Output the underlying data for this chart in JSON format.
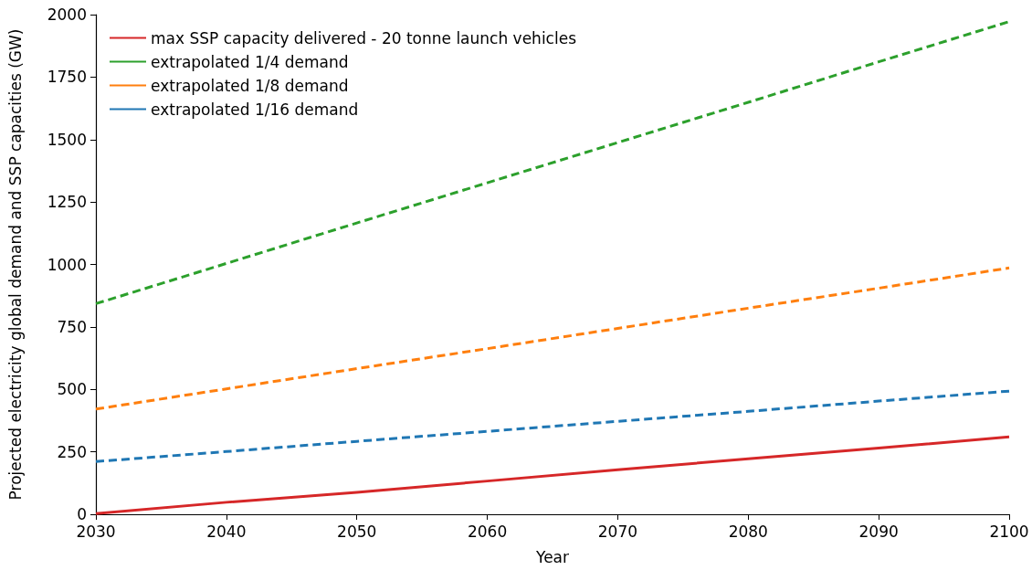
{
  "chart_data": {
    "type": "line",
    "xlabel": "Year",
    "ylabel": "Projected electricity global demand and SSP capacities (GW)",
    "x": [
      2030,
      2040,
      2050,
      2060,
      2070,
      2080,
      2090,
      2100
    ],
    "series": [
      {
        "name": "max SSP capacity delivered - 20 tonne launch vehicles",
        "color": "#d62728",
        "line_style": "solid",
        "values": [
          3,
          48,
          88,
          133,
          178,
          222,
          265,
          310
        ]
      },
      {
        "name": "extrapolated 1/4 demand",
        "color": "#2ca02c",
        "line_style": "dashed",
        "values": [
          843,
          1004,
          1166,
          1327,
          1488,
          1649,
          1811,
          1972
        ]
      },
      {
        "name": "extrapolated 1/8 demand",
        "color": "#ff7f0e",
        "line_style": "dashed",
        "values": [
          421,
          502,
          583,
          663,
          744,
          825,
          905,
          986
        ]
      },
      {
        "name": "extrapolated 1/16 demand",
        "color": "#1f77b4",
        "line_style": "dashed",
        "values": [
          211,
          251,
          292,
          332,
          372,
          412,
          453,
          493
        ]
      }
    ],
    "xlim": [
      2030,
      2100
    ],
    "xticks": [
      2030,
      2040,
      2050,
      2060,
      2070,
      2080,
      2090,
      2100
    ],
    "ylim": [
      0,
      2000
    ],
    "yticks": [
      0,
      250,
      500,
      750,
      1000,
      1250,
      1500,
      1750,
      2000
    ],
    "grid": false,
    "legend": "top left",
    "marker": "none"
  }
}
